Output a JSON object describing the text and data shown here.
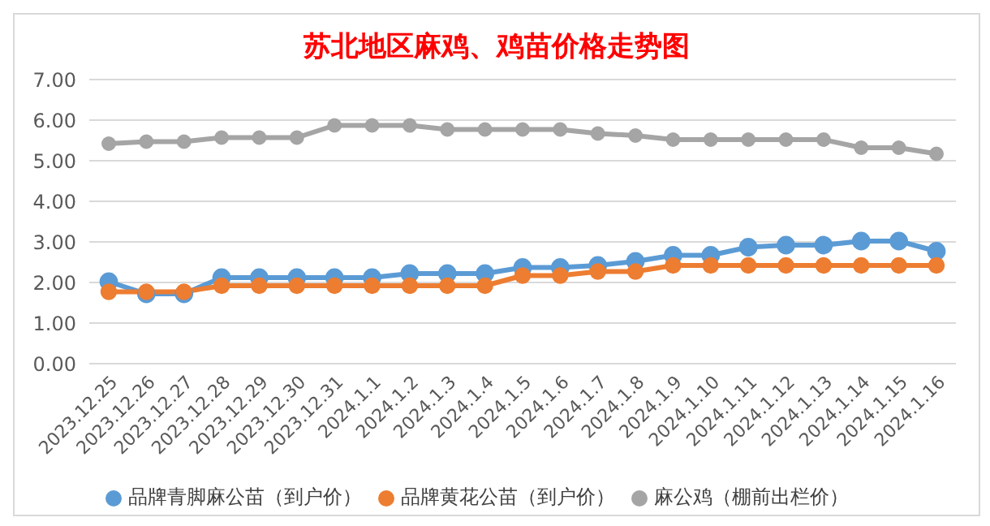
{
  "chart_data": {
    "type": "line",
    "title": "苏北地区麻鸡、鸡苗价格走势图",
    "categories": [
      "2023.12.25",
      "2023.12.26",
      "2023.12.27",
      "2023.12.28",
      "2023.12.29",
      "2023.12.30",
      "2023.12.31",
      "2024.1.1",
      "2024.1.2",
      "2024.1.3",
      "2024.1.4",
      "2024.1.5",
      "2024.1.6",
      "2024.1.7",
      "2024.1.8",
      "2024.1.9",
      "2024.1.10",
      "2024.1.11",
      "2024.1.12",
      "2024.1.13",
      "2024.1.14",
      "2024.1.15",
      "2024.1.16"
    ],
    "series": [
      {
        "name": "品牌青脚麻公苗（到户价）",
        "color": "#5b9bd5",
        "values": [
          2.02,
          1.72,
          1.72,
          2.12,
          2.12,
          2.12,
          2.12,
          2.12,
          2.22,
          2.22,
          2.22,
          2.37,
          2.37,
          2.42,
          2.52,
          2.67,
          2.67,
          2.87,
          2.92,
          2.92,
          3.02,
          3.02,
          2.77
        ]
      },
      {
        "name": "品牌黄花公苗（到户价）",
        "color": "#ed7d31",
        "values": [
          1.77,
          1.77,
          1.77,
          1.92,
          1.92,
          1.92,
          1.92,
          1.92,
          1.92,
          1.92,
          1.92,
          2.17,
          2.17,
          2.27,
          2.27,
          2.42,
          2.42,
          2.42,
          2.42,
          2.42,
          2.42,
          2.42,
          2.42
        ]
      },
      {
        "name": "麻公鸡（棚前出栏价）",
        "color": "#a5a5a5",
        "values": [
          5.42,
          5.47,
          5.47,
          5.57,
          5.57,
          5.57,
          5.87,
          5.87,
          5.87,
          5.77,
          5.77,
          5.77,
          5.77,
          5.67,
          5.62,
          5.52,
          5.52,
          5.52,
          5.52,
          5.52,
          5.32,
          5.32,
          5.17
        ]
      }
    ],
    "ylim": [
      0,
      7
    ],
    "yticks": [
      {
        "value": 0,
        "label": "0.00"
      },
      {
        "value": 1,
        "label": "1.00"
      },
      {
        "value": 2,
        "label": "2.00"
      },
      {
        "value": 3,
        "label": "3.00"
      },
      {
        "value": 4,
        "label": "4.00"
      },
      {
        "value": 5,
        "label": "5.00"
      },
      {
        "value": 6,
        "label": "6.00"
      },
      {
        "value": 7,
        "label": "7.00"
      }
    ],
    "grid": "y",
    "legend": "bottom",
    "marker": "circle",
    "line_style": "solid"
  }
}
